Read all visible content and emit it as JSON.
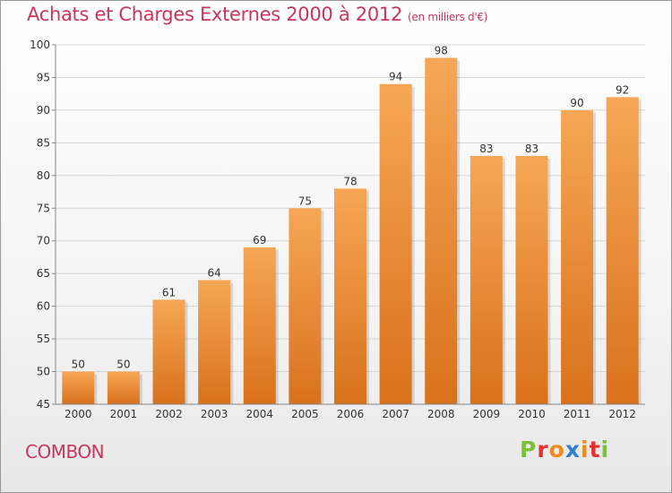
{
  "title": "Achats et Charges Externes 2000 à 2012",
  "subtitle": "(en milliers d'€)",
  "place_name": "COMBON",
  "logo_text": "Proxiti",
  "colors": {
    "title": "#c9365a",
    "bar_top": "#f6a755",
    "bar_bottom": "#d9711c",
    "logo": [
      "#7fbf3f",
      "#e8312f",
      "#f08a1c",
      "#2f7fd3",
      "#f08a1c",
      "#e8312f",
      "#7fbf3f"
    ]
  },
  "chart_data": {
    "type": "bar",
    "categories": [
      "2000",
      "2001",
      "2002",
      "2003",
      "2004",
      "2005",
      "2006",
      "2007",
      "2008",
      "2009",
      "2010",
      "2011",
      "2012"
    ],
    "values": [
      50,
      50,
      61,
      64,
      69,
      75,
      78,
      94,
      98,
      83,
      83,
      90,
      92
    ],
    "data_labels": [
      "50",
      "50",
      "61",
      "64",
      "69",
      "75",
      "78",
      "94",
      "98",
      "83",
      "83",
      "90",
      "92"
    ],
    "yticks": [
      "45",
      "50",
      "55",
      "60",
      "65",
      "70",
      "75",
      "80",
      "85",
      "90",
      "95",
      "100"
    ],
    "ylim": [
      45,
      100
    ],
    "title": "Achats et Charges Externes 2000 à 2012",
    "xlabel": "",
    "ylabel": "",
    "grid": true
  }
}
